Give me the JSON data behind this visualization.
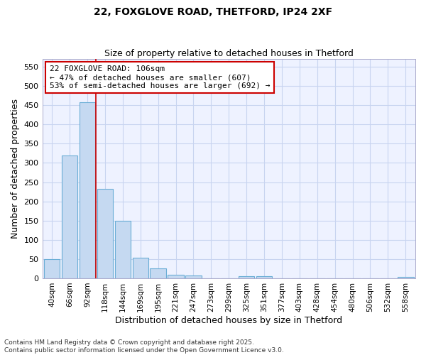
{
  "title1": "22, FOXGLOVE ROAD, THETFORD, IP24 2XF",
  "title2": "Size of property relative to detached houses in Thetford",
  "xlabel": "Distribution of detached houses by size in Thetford",
  "ylabel": "Number of detached properties",
  "bar_labels": [
    "40sqm",
    "66sqm",
    "92sqm",
    "118sqm",
    "144sqm",
    "169sqm",
    "195sqm",
    "221sqm",
    "247sqm",
    "273sqm",
    "299sqm",
    "325sqm",
    "351sqm",
    "377sqm",
    "403sqm",
    "428sqm",
    "454sqm",
    "480sqm",
    "506sqm",
    "532sqm",
    "558sqm"
  ],
  "bar_values": [
    50,
    320,
    457,
    232,
    149,
    54,
    25,
    10,
    8,
    0,
    0,
    5,
    5,
    0,
    0,
    0,
    0,
    0,
    0,
    0,
    3
  ],
  "bar_color": "#c5d9f1",
  "bar_edge_color": "#6baed6",
  "vline_x": 2.5,
  "vline_color": "#cc0000",
  "annotation_text": "22 FOXGLOVE ROAD: 106sqm\n← 47% of detached houses are smaller (607)\n53% of semi-detached houses are larger (692) →",
  "annotation_box_color": "#ffffff",
  "annotation_box_edge": "#cc0000",
  "ylim": [
    0,
    570
  ],
  "yticks": [
    0,
    50,
    100,
    150,
    200,
    250,
    300,
    350,
    400,
    450,
    500,
    550
  ],
  "background_color": "#ffffff",
  "plot_bg_color": "#eef2ff",
  "grid_color": "#c8d4f0",
  "footer1": "Contains HM Land Registry data © Crown copyright and database right 2025.",
  "footer2": "Contains public sector information licensed under the Open Government Licence v3.0."
}
